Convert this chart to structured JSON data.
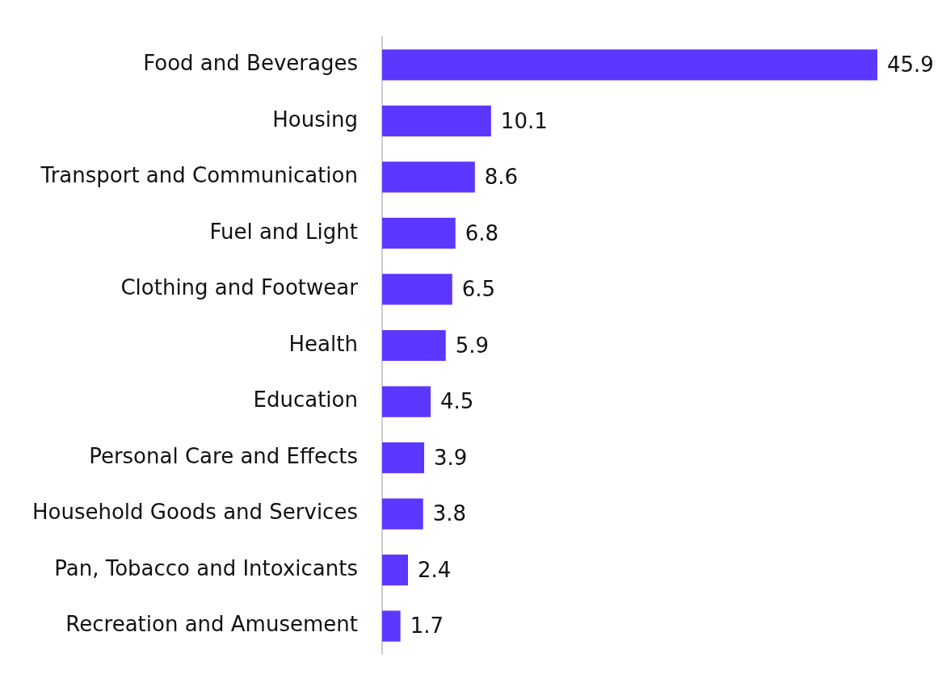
{
  "chart_data": {
    "type": "bar",
    "orientation": "horizontal",
    "categories": [
      "Food and Beverages",
      "Housing",
      "Transport and Communication",
      "Fuel and Light",
      "Clothing and Footwear",
      "Health",
      "Education",
      "Personal Care and Effects",
      "Household Goods and Services",
      "Pan, Tobacco and Intoxicants",
      "Recreation and Amusement"
    ],
    "values": [
      45.9,
      10.1,
      8.6,
      6.8,
      6.5,
      5.9,
      4.5,
      3.9,
      3.8,
      2.4,
      1.7
    ],
    "color": "#5b37ff",
    "data_labels": true
  }
}
